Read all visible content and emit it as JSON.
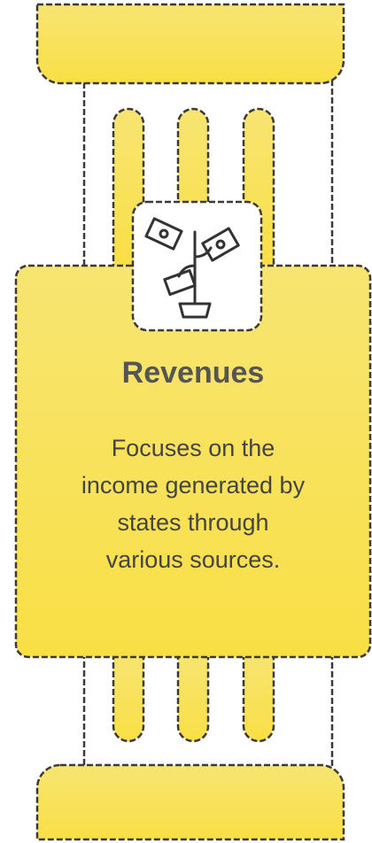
{
  "card": {
    "title": "Revenues",
    "description": [
      "Focuses on the",
      "income generated by",
      "states through",
      "various sources."
    ]
  }
}
